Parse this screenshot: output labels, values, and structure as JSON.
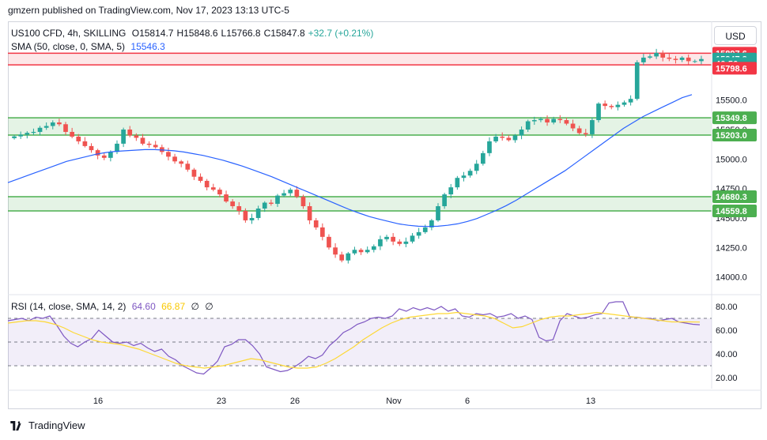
{
  "credit": "gmzern published on TradingView.com, Nov 17, 2023 13:13 UTC-5",
  "legend": {
    "symbol": "US100 CFD, 4h, SKILLING",
    "open": "O15814.7",
    "high": "H15848.6",
    "low": "L15766.8",
    "close": "C15847.8",
    "change": "+32.7 (+0.21%)",
    "sma_label": "SMA (50, close, 0, SMA, 5)",
    "sma_value": "15546.3",
    "rsi_label": "RSI (14, close, SMA, 14, 2)",
    "rsi_value": "64.60",
    "rsi_ma_value": "66.87",
    "rsi_extra1": "∅",
    "rsi_extra2": "∅"
  },
  "currency_button": "USD",
  "footer_brand": "TradingView",
  "colors": {
    "up": "#26a69a",
    "down": "#ef5350",
    "sma": "#2962ff",
    "rsi": "#7e57c2",
    "rsi_ma": "#fdd835",
    "zone_green": "#4caf50",
    "zone_red": "#f23645",
    "price_badge": "#26a69a"
  },
  "chart_data": [
    {
      "type": "candlestick",
      "price_axis_ticks": [
        "14000.0",
        "14250.0",
        "14500.0",
        "14750.0",
        "15000.0",
        "15250.0",
        "15500.0"
      ],
      "date_axis_ticks": [
        "16",
        "23",
        "26",
        "Nov",
        "6",
        "13"
      ],
      "ylim": [
        13870,
        15960
      ],
      "axis_badges": [
        {
          "label": "15897.6",
          "value": 15897.6,
          "color": "#f23645"
        },
        {
          "label": "15847.8",
          "value": 15847.8,
          "color": "#26a69a"
        },
        {
          "label": "46:56",
          "value": 15810,
          "color": "#26a69a"
        },
        {
          "label": "15798.6",
          "value": 15770,
          "color": "#f23645"
        },
        {
          "label": "15349.8",
          "value": 15349.8,
          "color": "#4caf50"
        },
        {
          "label": "15203.0",
          "value": 15203.0,
          "color": "#4caf50"
        },
        {
          "label": "14680.3",
          "value": 14680.3,
          "color": "#4caf50"
        },
        {
          "label": "14559.8",
          "value": 14559.8,
          "color": "#4caf50"
        }
      ],
      "zones": [
        {
          "top": 15897.6,
          "bottom": 15798.6,
          "color": "red"
        },
        {
          "top": 15349.8,
          "bottom": 15203.0,
          "color": "green"
        },
        {
          "top": 14680.3,
          "bottom": 14559.8,
          "color": "green"
        }
      ],
      "close_series": [
        15192,
        15207,
        15222,
        15230,
        15265,
        15280,
        15310,
        15295,
        15230,
        15190,
        15150,
        15110,
        15075,
        15030,
        15010,
        15060,
        15130,
        15250,
        15200,
        15180,
        15130,
        15120,
        15100,
        15060,
        15020,
        14980,
        14960,
        14910,
        14850,
        14815,
        14760,
        14740,
        14700,
        14640,
        14600,
        14560,
        14480,
        14500,
        14580,
        14630,
        14620,
        14690,
        14710,
        14740,
        14680,
        14600,
        14480,
        14420,
        14340,
        14250,
        14190,
        14140,
        14200,
        14230,
        14210,
        14230,
        14260,
        14320,
        14340,
        14300,
        14280,
        14300,
        14350,
        14380,
        14420,
        14480,
        14600,
        14700,
        14760,
        14840,
        14860,
        14900,
        14960,
        15050,
        15150,
        15190,
        15180,
        15160,
        15200,
        15250,
        15320,
        15330,
        15340,
        15310,
        15340,
        15330,
        15300,
        15260,
        15220,
        15210,
        15330,
        15470,
        15450,
        15440,
        15460,
        15480,
        15510,
        15820,
        15860,
        15870,
        15900,
        15860,
        15850,
        15840,
        15860,
        15830,
        15830,
        15848
      ],
      "sma_series": [
        14800,
        14830,
        14860,
        14890,
        14920,
        14950,
        14980,
        15000,
        15020,
        15040,
        15055,
        15065,
        15070,
        15075,
        15080,
        15080,
        15076,
        15070,
        15060,
        15045,
        15030,
        15010,
        14990,
        14965,
        14940,
        14910,
        14880,
        14850,
        14815,
        14780,
        14745,
        14710,
        14675,
        14640,
        14605,
        14570,
        14540,
        14512,
        14490,
        14470,
        14450,
        14438,
        14430,
        14428,
        14430,
        14438,
        14450,
        14470,
        14495,
        14530,
        14565,
        14605,
        14650,
        14700,
        14750,
        14800,
        14850,
        14900,
        14960,
        15020,
        15080,
        15140,
        15200,
        15260,
        15310,
        15360,
        15400,
        15440,
        15480,
        15520,
        15546
      ]
    },
    {
      "type": "line",
      "name": "RSI",
      "yaxis_ticks": [
        "20.00",
        "40.00",
        "60.00",
        "80.00"
      ],
      "ylim": [
        12,
        88
      ],
      "levels": [
        70,
        50,
        30
      ],
      "rsi_series": [
        68,
        69,
        70,
        68,
        71,
        70,
        72,
        64,
        55,
        49,
        46,
        50,
        53,
        60,
        55,
        50,
        49,
        50,
        47,
        49,
        45,
        42,
        44,
        38,
        35,
        30,
        27,
        24,
        23,
        28,
        34,
        46,
        48,
        52,
        52,
        47,
        40,
        29,
        27,
        25,
        26,
        29,
        33,
        38,
        36,
        39,
        47,
        52,
        58,
        61,
        65,
        67,
        70,
        71,
        70,
        72,
        78,
        76,
        79,
        77,
        79,
        77,
        80,
        76,
        78,
        72,
        71,
        74,
        73,
        74,
        71,
        72,
        74,
        70,
        72,
        69,
        54,
        51,
        52,
        68,
        74,
        72,
        70,
        71,
        73,
        74,
        83,
        84,
        84,
        71,
        71,
        70,
        70,
        68,
        69,
        70,
        67,
        66,
        65,
        64.6
      ],
      "rsi_ma_series": [
        66,
        67,
        68,
        68,
        67,
        65,
        62,
        58,
        55,
        52,
        50,
        49,
        48,
        46,
        44,
        41,
        38,
        35,
        32,
        30,
        29,
        28,
        29,
        30,
        32,
        34,
        36,
        35,
        33,
        31,
        29,
        28,
        28,
        29,
        32,
        36,
        41,
        46,
        52,
        57,
        62,
        66,
        69,
        71,
        72,
        73,
        74,
        74,
        75,
        74,
        73,
        72,
        70,
        66,
        62,
        63,
        66,
        69,
        71,
        72,
        72,
        73,
        74,
        75,
        74,
        73,
        72,
        71,
        70,
        69,
        68,
        67,
        67,
        67,
        66.87
      ]
    }
  ]
}
